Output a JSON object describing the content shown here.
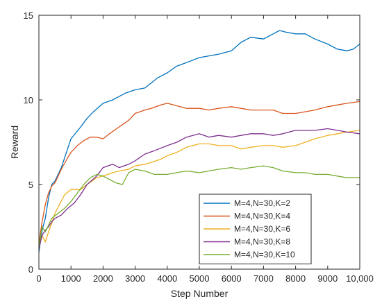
{
  "chart_data": {
    "type": "line",
    "title": "",
    "xlabel": "Step Number",
    "ylabel": "Reward",
    "xlim": [
      0,
      10000
    ],
    "ylim": [
      0,
      15
    ],
    "xticks": [
      0,
      1000,
      2000,
      3000,
      4000,
      5000,
      6000,
      7000,
      8000,
      9000,
      10000
    ],
    "xtick_labels": [
      "0",
      "1000",
      "2000",
      "3000",
      "4000",
      "5000",
      "6000",
      "7000",
      "8000",
      "9000",
      "10,000"
    ],
    "yticks": [
      0,
      5,
      10,
      15
    ],
    "ytick_labels": [
      "0",
      "5",
      "10",
      "15"
    ],
    "grid": false,
    "legend_position": "bottom-right",
    "series": [
      {
        "name": "M=4,N=30,K=2",
        "color": "#0072BD",
        "x": [
          0,
          100,
          200,
          300,
          400,
          500,
          700,
          1000,
          1300,
          1500,
          1700,
          2000,
          2300,
          2500,
          2700,
          3000,
          3300,
          3500,
          3700,
          4000,
          4300,
          4600,
          5000,
          5300,
          5600,
          6000,
          6300,
          6600,
          7000,
          7300,
          7500,
          7700,
          8000,
          8300,
          8600,
          9000,
          9300,
          9600,
          9800,
          10000
        ],
        "y": [
          1.0,
          2.3,
          3.0,
          4.2,
          5.0,
          5.2,
          6.0,
          7.7,
          8.4,
          8.9,
          9.3,
          9.8,
          10.0,
          10.2,
          10.4,
          10.6,
          10.7,
          11.0,
          11.3,
          11.6,
          12.0,
          12.2,
          12.5,
          12.6,
          12.7,
          12.9,
          13.4,
          13.7,
          13.6,
          13.9,
          14.1,
          14.0,
          13.9,
          13.9,
          13.6,
          13.3,
          13.0,
          12.9,
          13.0,
          13.3
        ]
      },
      {
        "name": "M=4,N=30,K=4",
        "color": "#D95319",
        "x": [
          0,
          100,
          200,
          300,
          400,
          500,
          700,
          900,
          1000,
          1200,
          1400,
          1600,
          1800,
          2000,
          2200,
          2500,
          2800,
          3000,
          3300,
          3500,
          3800,
          4000,
          4200,
          4400,
          4600,
          5000,
          5300,
          5600,
          6000,
          6300,
          6600,
          7000,
          7300,
          7600,
          8000,
          8300,
          8600,
          9000,
          9300,
          9600,
          10000
        ],
        "y": [
          1.5,
          2.8,
          3.8,
          4.5,
          4.9,
          5.1,
          5.9,
          6.6,
          6.9,
          7.3,
          7.6,
          7.8,
          7.8,
          7.7,
          8.0,
          8.4,
          8.8,
          9.2,
          9.4,
          9.5,
          9.7,
          9.8,
          9.7,
          9.6,
          9.5,
          9.5,
          9.4,
          9.5,
          9.6,
          9.5,
          9.4,
          9.4,
          9.4,
          9.2,
          9.2,
          9.3,
          9.4,
          9.6,
          9.7,
          9.8,
          9.9
        ]
      },
      {
        "name": "M=4,N=30,K=6",
        "color": "#EDB120",
        "x": [
          0,
          100,
          200,
          300,
          400,
          500,
          800,
          1000,
          1300,
          1500,
          1800,
          2000,
          2300,
          2500,
          2800,
          3000,
          3300,
          3500,
          3800,
          4000,
          4300,
          4600,
          5000,
          5300,
          5600,
          6000,
          6300,
          6600,
          7000,
          7300,
          7600,
          8000,
          8300,
          8600,
          9000,
          9300,
          9600,
          10000
        ],
        "y": [
          1.3,
          2.0,
          1.6,
          2.2,
          2.7,
          3.3,
          4.4,
          4.7,
          4.7,
          5.0,
          5.4,
          5.5,
          5.7,
          5.8,
          5.9,
          6.1,
          6.2,
          6.3,
          6.5,
          6.7,
          6.9,
          7.2,
          7.4,
          7.4,
          7.3,
          7.3,
          7.1,
          7.2,
          7.3,
          7.3,
          7.2,
          7.3,
          7.5,
          7.7,
          7.9,
          8.0,
          8.1,
          8.2
        ]
      },
      {
        "name": "M=4,N=30,K=8",
        "color": "#7E2F8E",
        "x": [
          0,
          100,
          200,
          300,
          400,
          500,
          700,
          900,
          1100,
          1300,
          1500,
          1800,
          2000,
          2300,
          2500,
          2800,
          3000,
          3300,
          3600,
          4000,
          4300,
          4600,
          4800,
          5000,
          5300,
          5600,
          6000,
          6300,
          6600,
          7000,
          7300,
          7600,
          8000,
          8300,
          8600,
          9000,
          9300,
          9600,
          10000
        ],
        "y": [
          1.2,
          2.0,
          2.3,
          2.5,
          2.8,
          3.0,
          3.2,
          3.6,
          3.9,
          4.4,
          5.0,
          5.5,
          6.0,
          6.2,
          6.0,
          6.2,
          6.4,
          6.8,
          7.0,
          7.3,
          7.5,
          7.8,
          7.9,
          8.0,
          7.8,
          7.9,
          7.8,
          7.9,
          8.0,
          8.0,
          7.9,
          8.0,
          8.2,
          8.2,
          8.2,
          8.3,
          8.2,
          8.1,
          8.0
        ]
      },
      {
        "name": "M=4,N=30,K=10",
        "color": "#77AC30",
        "x": [
          0,
          100,
          200,
          300,
          400,
          600,
          800,
          1000,
          1200,
          1400,
          1600,
          1800,
          2000,
          2200,
          2400,
          2600,
          2800,
          3000,
          3300,
          3600,
          4000,
          4300,
          4600,
          5000,
          5300,
          5600,
          6000,
          6300,
          6600,
          7000,
          7300,
          7600,
          8000,
          8300,
          8600,
          9000,
          9300,
          9600,
          10000
        ],
        "y": [
          1.3,
          2.5,
          2.2,
          2.6,
          3.0,
          3.3,
          3.6,
          4.0,
          4.5,
          5.0,
          5.4,
          5.6,
          5.5,
          5.3,
          5.1,
          5.0,
          5.7,
          5.9,
          5.8,
          5.6,
          5.6,
          5.7,
          5.8,
          5.7,
          5.8,
          5.9,
          6.0,
          5.9,
          6.0,
          6.1,
          6.0,
          5.8,
          5.7,
          5.7,
          5.6,
          5.6,
          5.5,
          5.4,
          5.4
        ]
      }
    ]
  }
}
